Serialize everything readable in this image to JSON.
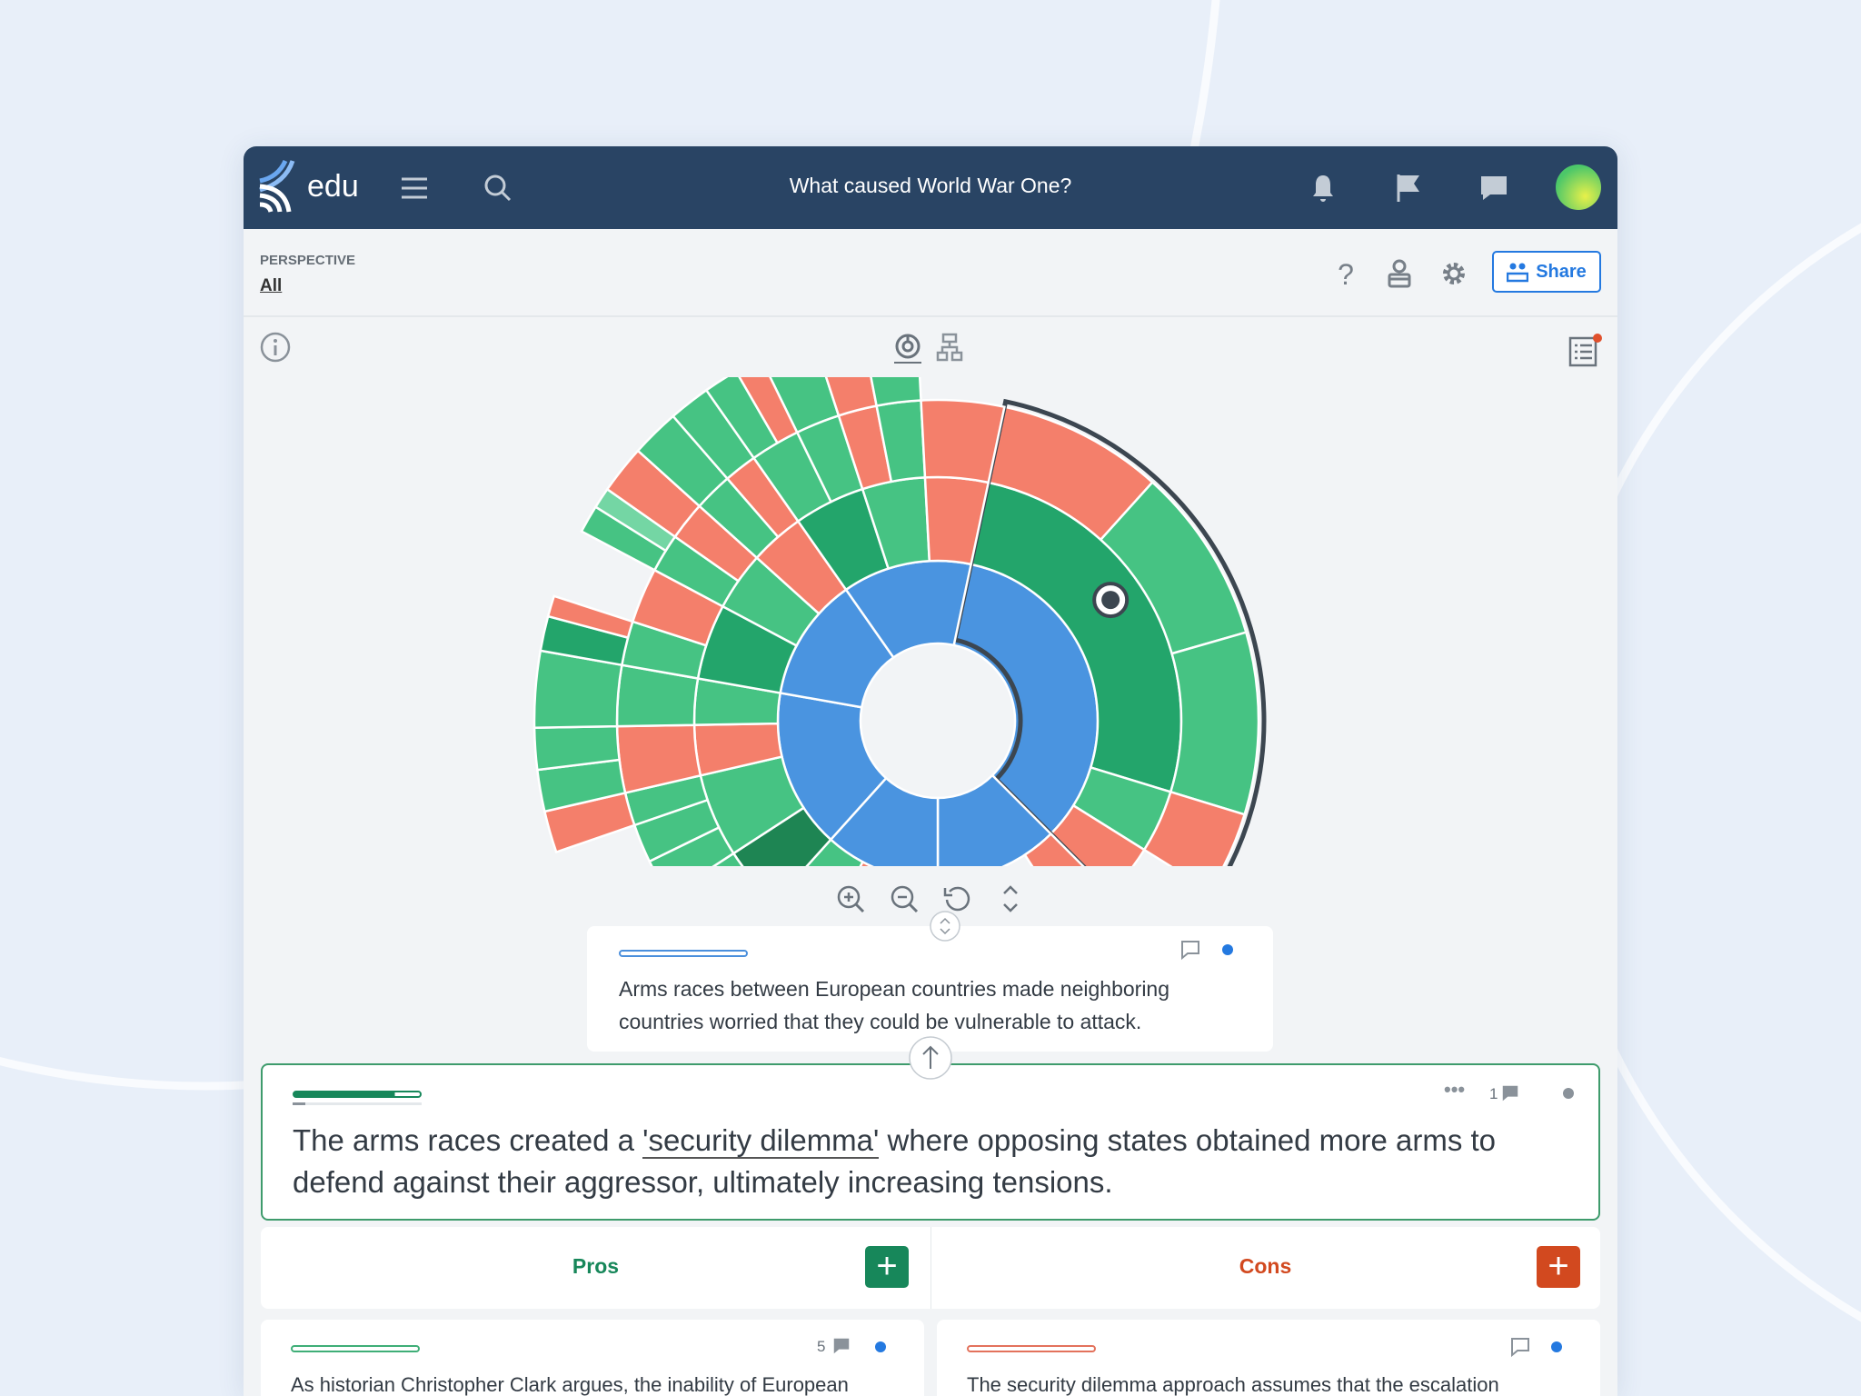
{
  "header": {
    "app_name": "edu",
    "title": "What caused World War One?"
  },
  "perspective": {
    "label": "PERSPECTIVE",
    "value": "All"
  },
  "toolbar": {
    "share_label": "Share"
  },
  "colors": {
    "header": "#294464",
    "claim": "#4a94e0",
    "pro": "#46c383",
    "pro-dark": "#23a56b",
    "pro-darker": "#1e8553",
    "pro-light": "#74d6a4",
    "con": "#f47f6b",
    "accent": "#2479e0",
    "pro_button": "#17875a",
    "con_button": "#d2491f"
  },
  "sunburst": {
    "start_angle": 12,
    "highlighted": 0,
    "children": [
      {
        "type": "claim",
        "w": 123,
        "children": [
          {
            "type": "pro-dark",
            "w": 95,
            "children": [
              {
                "type": "con",
                "w": 30
              },
              {
                "type": "pro",
                "w": 32
              },
              {
                "type": "pro",
                "w": 33
              }
            ]
          },
          {
            "type": "pro",
            "w": 15,
            "children": [
              {
                "type": "con",
                "w": 15
              }
            ]
          },
          {
            "type": "con",
            "w": 13
          }
        ]
      },
      {
        "type": "claim",
        "w": 45,
        "children": [
          {
            "type": "con",
            "w": 12
          },
          {
            "type": "gap",
            "w": 10
          },
          {
            "type": "pro",
            "w": 23,
            "children": [
              {
                "type": "pro",
                "w": 23
              }
            ]
          }
        ]
      },
      {
        "type": "claim",
        "w": 42,
        "children": [
          {
            "type": "pro",
            "w": 14,
            "children": [
              {
                "type": "pro",
                "w": 14
              }
            ]
          },
          {
            "type": "con",
            "w": 14,
            "children": [
              {
                "type": "con",
                "w": 14
              }
            ]
          },
          {
            "type": "pro",
            "w": 14,
            "children": [
              {
                "type": "pro",
                "w": 8
              },
              {
                "type": "con",
                "w": 6
              }
            ]
          }
        ]
      },
      {
        "type": "claim",
        "w": 58,
        "children": [
          {
            "type": "pro-darker",
            "w": 15,
            "children": [
              {
                "type": "pro",
                "w": 15
              }
            ]
          },
          {
            "type": "pro",
            "w": 20,
            "children": [
              {
                "type": "pro",
                "w": 7
              },
              {
                "type": "pro",
                "w": 7
              },
              {
                "type": "pro",
                "w": 6,
                "children": [
                  {
                    "type": "con",
                    "w": 6
                  }
                ]
              }
            ]
          },
          {
            "type": "con",
            "w": 12,
            "children": [
              {
                "type": "con",
                "w": 12,
                "children": [
                  {
                    "type": "pro",
                    "w": 6
                  },
                  {
                    "type": "pro",
                    "w": 6
                  }
                ]
              }
            ]
          },
          {
            "type": "pro",
            "w": 11,
            "children": [
              {
                "type": "pro",
                "w": 11,
                "children": [
                  {
                    "type": "pro",
                    "w": 11
                  }
                ]
              }
            ]
          }
        ]
      },
      {
        "type": "claim",
        "w": 45,
        "children": [
          {
            "type": "pro-dark",
            "w": 18,
            "children": [
              {
                "type": "pro",
                "w": 8,
                "children": [
                  {
                    "type": "pro-dark",
                    "w": 5
                  },
                  {
                    "type": "con",
                    "w": 3
                  }
                ]
              },
              {
                "type": "con",
                "w": 10
              }
            ]
          },
          {
            "type": "pro",
            "w": 14,
            "children": [
              {
                "type": "pro",
                "w": 7,
                "children": [
                  {
                    "type": "pro",
                    "w": 4
                  },
                  {
                    "type": "pro-light",
                    "w": 3
                  }
                ]
              },
              {
                "type": "con",
                "w": 7,
                "children": [
                  {
                    "type": "con",
                    "w": 7
                  }
                ]
              }
            ]
          },
          {
            "type": "con",
            "w": 13,
            "children": [
              {
                "type": "pro",
                "w": 7,
                "children": [
                  {
                    "type": "pro",
                    "w": 7
                  }
                ]
              },
              {
                "type": "con",
                "w": 6,
                "children": [
                  {
                    "type": "pro",
                    "w": 6
                  }
                ]
              }
            ]
          }
        ]
      },
      {
        "type": "claim",
        "w": 47,
        "children": [
          {
            "type": "pro-dark",
            "w": 17,
            "children": [
              {
                "type": "pro",
                "w": 9,
                "children": [
                  {
                    "type": "pro",
                    "w": 5
                  },
                  {
                    "type": "con",
                    "w": 4
                  }
                ]
              },
              {
                "type": "pro",
                "w": 8,
                "children": [
                  {
                    "type": "pro",
                    "w": 8
                  }
                ]
              }
            ]
          },
          {
            "type": "pro",
            "w": 15,
            "children": [
              {
                "type": "con",
                "w": 7,
                "children": [
                  {
                    "type": "con",
                    "w": 7
                  }
                ]
              },
              {
                "type": "pro",
                "w": 8,
                "children": [
                  {
                    "type": "pro",
                    "w": 8
                  }
                ]
              }
            ]
          },
          {
            "type": "con",
            "w": 15,
            "children": [
              {
                "type": "con",
                "w": 15
              }
            ]
          }
        ]
      }
    ]
  },
  "focus_card": {
    "text": "Arms races between European countries made neighboring countries worried that they could be vulnerable to attack."
  },
  "main_claim": {
    "text_before": "The arms races created a ",
    "link": "'security dilemma'",
    "text_after": " where opposing states obtained more arms to defend against their aggressor, ultimately increasing tensions.",
    "comment_count": "1"
  },
  "columns": {
    "pros_label": "Pros",
    "cons_label": "Cons"
  },
  "pro_card": {
    "text": "As historian Christopher Clark argues, the inability of European",
    "comment_count": "5"
  },
  "con_card": {
    "text": "The security dilemma approach assumes that the escalation"
  }
}
